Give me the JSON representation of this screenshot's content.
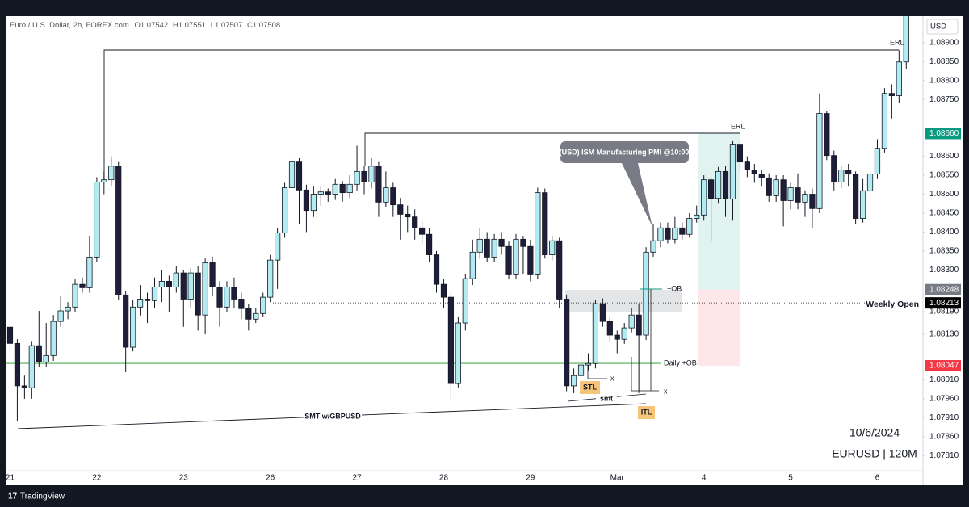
{
  "header": {
    "symbol": "Euro / U.S. Dollar, 2h, FOREX.com",
    "ohlc": [
      {
        "label": "O",
        "value": 1.07542
      },
      {
        "label": "H",
        "value": 1.07551
      },
      {
        "label": "L",
        "value": 1.07507
      },
      {
        "label": "C",
        "value": 1.07508
      }
    ]
  },
  "chart_data": {
    "type": "candlestick",
    "categories": [
      "21",
      null,
      null,
      null,
      null,
      null,
      null,
      null,
      null,
      null,
      null,
      null,
      "22",
      null,
      null,
      null,
      null,
      null,
      null,
      null,
      null,
      null,
      null,
      null,
      "23",
      null,
      null,
      null,
      null,
      null,
      null,
      null,
      null,
      null,
      null,
      null,
      "26",
      null,
      null,
      null,
      null,
      null,
      null,
      null,
      null,
      null,
      null,
      null,
      "27",
      null,
      null,
      null,
      null,
      null,
      null,
      null,
      null,
      null,
      null,
      null,
      "28",
      null,
      null,
      null,
      null,
      null,
      null,
      null,
      null,
      null,
      null,
      null,
      "29",
      null,
      null,
      null,
      null,
      null,
      null,
      null,
      null,
      null,
      null,
      null,
      "Mar",
      null,
      null,
      null,
      null,
      null,
      null,
      null,
      null,
      null,
      null,
      null,
      "4",
      null,
      null,
      null,
      null,
      null,
      null,
      null,
      null,
      null,
      null,
      null,
      "5",
      null,
      null,
      null,
      null,
      null,
      null,
      null,
      null,
      null,
      null,
      null,
      "6",
      null,
      null,
      null,
      null
    ],
    "open": [
      1.08149,
      1.08106,
      1.07994,
      1.07989,
      1.081,
      1.08057,
      1.08074,
      1.08164,
      1.08192,
      1.08202,
      1.08262,
      1.08253,
      1.08334,
      1.08532,
      1.08538,
      1.08574,
      1.08234,
      1.08096,
      1.08202,
      1.08223,
      1.08219,
      1.08255,
      1.0827,
      1.08255,
      1.08292,
      1.08223,
      1.08292,
      1.08181,
      1.08319,
      1.08255,
      1.08202,
      1.08255,
      1.08223,
      1.08198,
      1.0817,
      1.08185,
      1.08228,
      1.08326,
      1.08398,
      1.08517,
      1.08585,
      1.08511,
      1.08457,
      1.085,
      1.08506,
      1.085,
      1.08526,
      1.08504,
      1.08526,
      1.0856,
      1.08532,
      1.08574,
      1.08479,
      1.08517,
      1.08472,
      1.08447,
      1.0844,
      1.08411,
      1.08394,
      1.0834,
      1.08262,
      1.08228,
      1.08,
      1.0816,
      1.08277,
      1.08347,
      1.08381,
      1.08334,
      1.08381,
      1.08362,
      1.08287,
      1.08381,
      1.08362,
      1.08287,
      1.08504,
      1.0834,
      1.08377,
      1.08223,
      1.07994,
      1.08021,
      1.08049,
      1.08053,
      1.08211,
      1.08164,
      1.08128,
      1.08117,
      1.08147,
      1.08181,
      1.08128,
      1.08347,
      1.08377,
      1.08411,
      1.08381,
      1.08411,
      1.08394,
      1.08436,
      1.08445,
      1.08538,
      1.08489,
      1.0856,
      1.08487,
      1.08632,
      1.08585,
      1.08564,
      1.08553,
      1.08543,
      1.08496,
      1.08538,
      1.08483,
      1.08517,
      1.08479,
      1.085,
      1.08462,
      1.08713,
      1.08602,
      1.08532,
      1.08564,
      1.08553,
      1.08436,
      1.08509,
      1.08553,
      1.08621,
      1.08766,
      1.0876,
      1.08849
    ],
    "high": [
      1.0816,
      1.08117,
      1.08021,
      1.0811,
      1.08192,
      1.0816,
      1.08181,
      1.0823,
      1.08215,
      1.08275,
      1.0828,
      1.0839,
      1.08545,
      1.0856,
      1.086,
      1.08585,
      1.08245,
      1.0822,
      1.0826,
      1.0824,
      1.0828,
      1.083,
      1.08285,
      1.0831,
      1.083,
      1.08305,
      1.0831,
      1.0833,
      1.08335,
      1.0827,
      1.0827,
      1.0828,
      1.0824,
      1.0821,
      1.082,
      1.0824,
      1.0834,
      1.0841,
      1.0853,
      1.086,
      1.08595,
      1.08525,
      1.0852,
      1.0852,
      1.08515,
      1.0854,
      1.08535,
      1.0855,
      1.08628,
      1.08575,
      1.08595,
      1.08585,
      1.0856,
      1.0853,
      1.0849,
      1.0847,
      1.0846,
      1.0843,
      1.0841,
      1.0835,
      1.08275,
      1.0824,
      1.08175,
      1.0829,
      1.0838,
      1.0841,
      1.084,
      1.08395,
      1.084,
      1.08375,
      1.08395,
      1.0839,
      1.0838,
      1.08517,
      1.08515,
      1.0839,
      1.08385,
      1.08235,
      1.0804,
      1.081,
      1.0808,
      1.0822,
      1.08225,
      1.08175,
      1.0814,
      1.0816,
      1.082,
      1.08211,
      1.0836,
      1.0842,
      1.08425,
      1.08425,
      1.0844,
      1.08425,
      1.0845,
      1.0847,
      1.0855,
      1.08545,
      1.08572,
      1.08575,
      1.0864,
      1.0864,
      1.086,
      1.0858,
      1.08565,
      1.08555,
      1.0855,
      1.0855,
      1.0853,
      1.08555,
      1.0851,
      1.08515,
      1.08766,
      1.0872,
      1.08615,
      1.08575,
      1.0858,
      1.0856,
      1.0854,
      1.08565,
      1.08645,
      1.0878,
      1.0879,
      1.0888,
      1.0899
    ],
    "low": [
      1.08074,
      1.079,
      1.0796,
      1.0796,
      1.08043,
      1.08043,
      1.0806,
      1.0815,
      1.0817,
      1.0819,
      1.0824,
      1.0824,
      1.0832,
      1.085,
      1.0852,
      1.0822,
      1.0803,
      1.08085,
      1.0818,
      1.0816,
      1.082,
      1.08215,
      1.0819,
      1.0824,
      1.0815,
      1.082,
      1.0814,
      1.0813,
      1.0823,
      1.0815,
      1.0819,
      1.082,
      1.0817,
      1.0814,
      1.0816,
      1.08175,
      1.08215,
      1.0825,
      1.08385,
      1.085,
      1.0842,
      1.084,
      1.0844,
      1.0847,
      1.0848,
      1.08485,
      1.0848,
      1.0849,
      1.0851,
      1.085,
      1.08515,
      1.0844,
      1.08465,
      1.0844,
      1.0838,
      1.084,
      1.0838,
      1.0837,
      1.0832,
      1.0824,
      1.082,
      1.0796,
      1.0799,
      1.0814,
      1.0826,
      1.0833,
      1.0832,
      1.0832,
      1.0834,
      1.08275,
      1.08275,
      1.0829,
      1.0827,
      1.08275,
      1.0833,
      1.08325,
      1.082,
      1.0798,
      1.07975,
      1.0801,
      1.08035,
      1.0804,
      1.0815,
      1.0811,
      1.0808,
      1.08105,
      1.08135,
      1.07975,
      1.08115,
      1.08335,
      1.0836,
      1.0837,
      1.0837,
      1.0838,
      1.08385,
      1.08425,
      1.0843,
      1.08377,
      1.08475,
      1.0844,
      1.0843,
      1.0856,
      1.08545,
      1.0853,
      1.0852,
      1.0848,
      1.0848,
      1.08415,
      1.0846,
      1.0846,
      1.0844,
      1.0841,
      1.0845,
      1.0859,
      1.0851,
      1.08515,
      1.0852,
      1.0842,
      1.08425,
      1.085,
      1.0854,
      1.0861,
      1.087,
      1.0874,
      1.0883
    ],
    "close": [
      1.08106,
      1.07994,
      1.07989,
      1.081,
      1.08057,
      1.08074,
      1.08164,
      1.08192,
      1.08202,
      1.08262,
      1.08253,
      1.08334,
      1.08532,
      1.08538,
      1.08574,
      1.08234,
      1.08096,
      1.08202,
      1.08223,
      1.08219,
      1.08255,
      1.0827,
      1.08255,
      1.08292,
      1.08223,
      1.08292,
      1.08181,
      1.08319,
      1.08255,
      1.08202,
      1.08255,
      1.08223,
      1.08198,
      1.0817,
      1.08185,
      1.08228,
      1.08326,
      1.08398,
      1.08517,
      1.08585,
      1.08511,
      1.08457,
      1.085,
      1.08506,
      1.085,
      1.08526,
      1.08504,
      1.08526,
      1.0856,
      1.08532,
      1.08574,
      1.08479,
      1.08517,
      1.08472,
      1.08447,
      1.0844,
      1.08411,
      1.08394,
      1.0834,
      1.08262,
      1.08228,
      1.08,
      1.0816,
      1.08277,
      1.08347,
      1.08381,
      1.08334,
      1.08381,
      1.08362,
      1.08287,
      1.08381,
      1.08362,
      1.08287,
      1.08504,
      1.0834,
      1.08377,
      1.08223,
      1.07994,
      1.08021,
      1.08049,
      1.08053,
      1.08211,
      1.08164,
      1.08128,
      1.08117,
      1.08147,
      1.08181,
      1.08128,
      1.08347,
      1.08377,
      1.08411,
      1.08381,
      1.08411,
      1.08394,
      1.08436,
      1.08445,
      1.08538,
      1.08489,
      1.0856,
      1.08487,
      1.08632,
      1.08585,
      1.08564,
      1.08553,
      1.08543,
      1.08496,
      1.08538,
      1.08483,
      1.08517,
      1.08479,
      1.085,
      1.08462,
      1.08713,
      1.08602,
      1.08532,
      1.08564,
      1.08553,
      1.08436,
      1.08509,
      1.08553,
      1.08621,
      1.08766,
      1.0876,
      1.08849,
      1.08972
    ],
    "up_color": "#b2ebf2",
    "down_color": "#1f1e3a",
    "ylim": [
      1.0777,
      1.0897
    ],
    "yticks": [
      {
        "value": 1.089,
        "label": "1.08900"
      },
      {
        "value": 1.0885,
        "label": "1.08850"
      },
      {
        "value": 1.088,
        "label": "1.08800"
      },
      {
        "value": 1.0875,
        "label": "1.08750"
      },
      {
        "value": 1.086,
        "label": "1.08600"
      },
      {
        "value": 1.0855,
        "label": "1.08550"
      },
      {
        "value": 1.085,
        "label": "1.08500"
      },
      {
        "value": 1.0845,
        "label": "1.08450"
      },
      {
        "value": 1.084,
        "label": "1.08400"
      },
      {
        "value": 1.0835,
        "label": "1.08350"
      },
      {
        "value": 1.083,
        "label": "1.08300"
      },
      {
        "value": 1.0819,
        "label": "1.08190"
      },
      {
        "value": 1.0813,
        "label": "1.08130"
      },
      {
        "value": 1.0801,
        "label": "1.08010"
      },
      {
        "value": 1.0796,
        "label": "1.07960"
      },
      {
        "value": 1.0791,
        "label": "1.07910"
      },
      {
        "value": 1.0786,
        "label": "1.07860"
      },
      {
        "value": 1.0781,
        "label": "1.07810"
      }
    ],
    "currency": "USD",
    "price_labels": [
      {
        "value": 1.0866,
        "label": "1.08660",
        "color": "#089981"
      },
      {
        "value": 1.08248,
        "label": "1.08248",
        "color": "#787b86"
      },
      {
        "value": 1.08213,
        "label": "1.08213",
        "color": "#000000"
      },
      {
        "value": 1.08047,
        "label": "1.08047",
        "color": "#f23645"
      }
    ]
  },
  "annotations": {
    "erl_top": "ERL",
    "erl_mid": "ERL",
    "news": "(USD) ISM Manufacturing PMI @10:00",
    "ob": "+OB",
    "weekly_open": "Weekly Open",
    "daily_ob": "Daily +OB",
    "stl": "STL",
    "itl": "ITL",
    "smt": "smt",
    "smt_gbpusd": "SMT w/GBPUSD",
    "x1": "x",
    "x2": "x",
    "date": "10/6/2024",
    "instrument": "EURUSD | 120M"
  },
  "footer": {
    "brand": "TradingView"
  }
}
